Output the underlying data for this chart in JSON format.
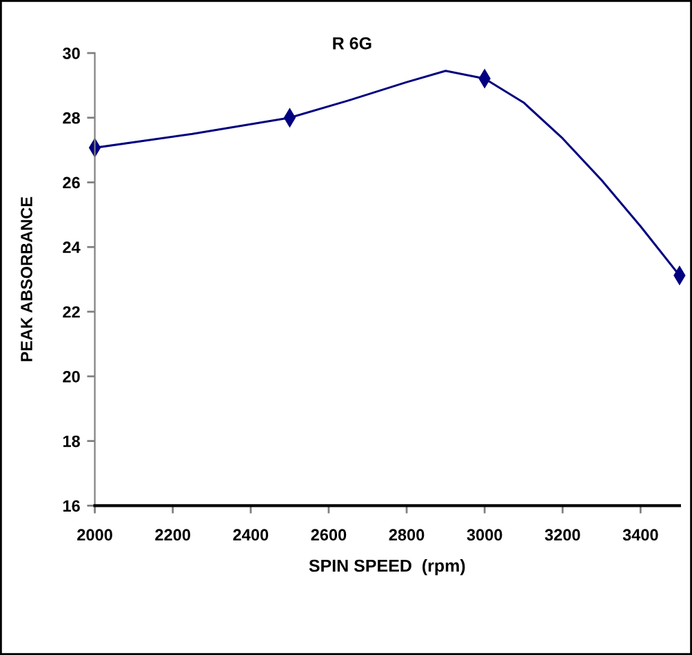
{
  "chart_data": {
    "type": "line",
    "title": "R 6G",
    "xlabel": "SPIN SPEED  (rpm)",
    "ylabel": "PEAK ABSORBANCE",
    "x": [
      2000,
      2500,
      3000,
      3500
    ],
    "series": [
      {
        "color": "#000080",
        "marker": "none",
        "x": [
          2000,
          2250,
          2500,
          2650,
          2800,
          2900,
          3000,
          3100,
          3200,
          3300,
          3400,
          3500
        ],
        "values": [
          27.07,
          27.5,
          28.0,
          28.53,
          29.1,
          29.45,
          29.21,
          28.47,
          27.36,
          26.07,
          24.64,
          23.12
        ]
      },
      {
        "type": "scatter",
        "marker": "diamond",
        "color": "#000080",
        "values": [
          27.07,
          28.0,
          29.21,
          23.12
        ]
      }
    ],
    "xlim": [
      2000,
      3500
    ],
    "xticks": [
      2000,
      2200,
      2400,
      2600,
      2800,
      3000,
      3200,
      3400
    ],
    "ylim": [
      16,
      30
    ],
    "yticks": [
      16,
      18,
      20,
      22,
      24,
      26,
      28,
      30
    ],
    "line_style": "solid",
    "grid": false,
    "legend": false
  }
}
